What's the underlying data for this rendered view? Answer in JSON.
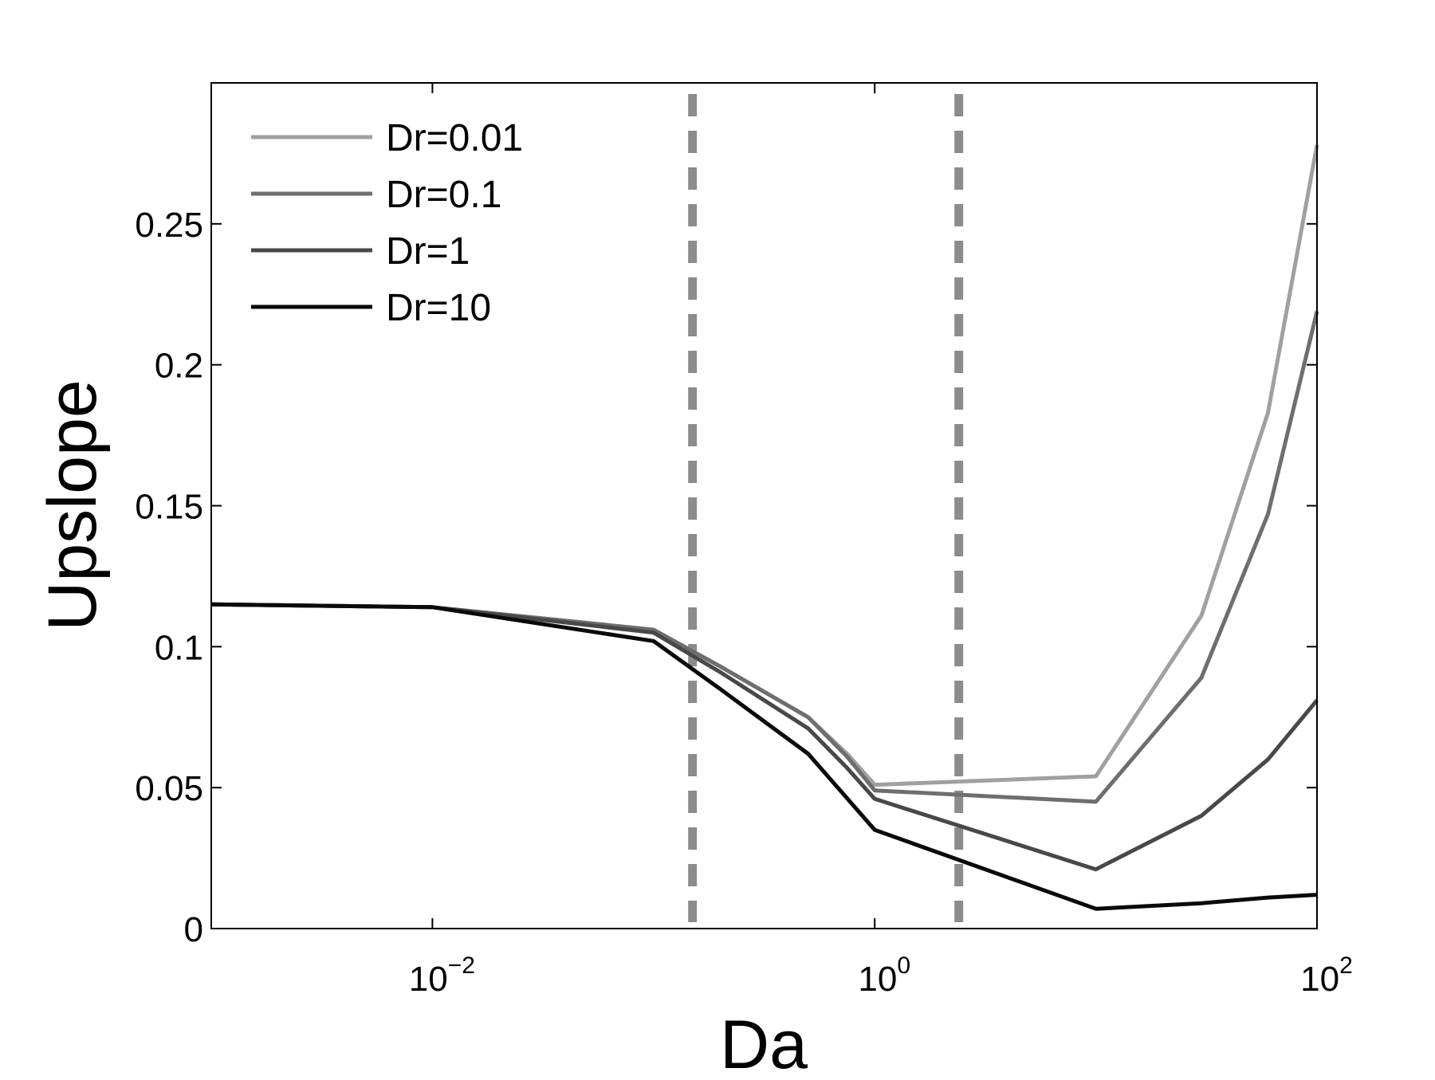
{
  "chart_data": {
    "type": "line",
    "title": "",
    "xlabel": "Da",
    "ylabel": "Upslope",
    "x_scale": "log",
    "xlim": [
      0.001,
      100
    ],
    "ylim": [
      0,
      0.3
    ],
    "grid": false,
    "legend_position": "top-left",
    "x_ticks": [
      {
        "value": 0.01,
        "base": "10",
        "exp": "−2"
      },
      {
        "value": 1,
        "base": "10",
        "exp": "0"
      },
      {
        "value": 100,
        "base": "10",
        "exp": "2"
      }
    ],
    "y_ticks": [
      {
        "value": 0,
        "label": "0"
      },
      {
        "value": 0.05,
        "label": "0.05"
      },
      {
        "value": 0.1,
        "label": "0.1"
      },
      {
        "value": 0.15,
        "label": "0.15"
      },
      {
        "value": 0.2,
        "label": "0.2"
      },
      {
        "value": 0.25,
        "label": "0.25"
      }
    ],
    "vertical_lines": [
      {
        "x": 0.15,
        "color": "#8c8c8c",
        "style": "dashed"
      },
      {
        "x": 2.4,
        "color": "#8c8c8c",
        "style": "dashed"
      }
    ],
    "series": [
      {
        "name": "Dr=0.01",
        "color": "#a0a0a0",
        "x": [
          0.001,
          0.01,
          0.1,
          0.2,
          0.5,
          0.75,
          1,
          10,
          30,
          60,
          100
        ],
        "y": [
          0.115,
          0.114,
          0.106,
          0.093,
          0.075,
          0.062,
          0.051,
          0.054,
          0.111,
          0.183,
          0.278
        ]
      },
      {
        "name": "Dr=0.1",
        "color": "#6e6e6e",
        "x": [
          0.001,
          0.01,
          0.1,
          0.2,
          0.5,
          0.75,
          1,
          10,
          30,
          60,
          100
        ],
        "y": [
          0.115,
          0.114,
          0.106,
          0.093,
          0.075,
          0.061,
          0.049,
          0.045,
          0.089,
          0.147,
          0.219
        ]
      },
      {
        "name": "Dr=1",
        "color": "#484848",
        "x": [
          0.001,
          0.01,
          0.1,
          0.2,
          0.5,
          0.75,
          1,
          10,
          30,
          60,
          100
        ],
        "y": [
          0.115,
          0.114,
          0.105,
          0.091,
          0.071,
          0.057,
          0.046,
          0.021,
          0.04,
          0.06,
          0.081
        ]
      },
      {
        "name": "Dr=10",
        "color": "#0a0a0a",
        "x": [
          0.001,
          0.01,
          0.1,
          0.2,
          0.5,
          1,
          10,
          30,
          60,
          100
        ],
        "y": [
          0.115,
          0.114,
          0.102,
          0.085,
          0.062,
          0.035,
          0.007,
          0.009,
          0.011,
          0.012
        ]
      }
    ]
  }
}
